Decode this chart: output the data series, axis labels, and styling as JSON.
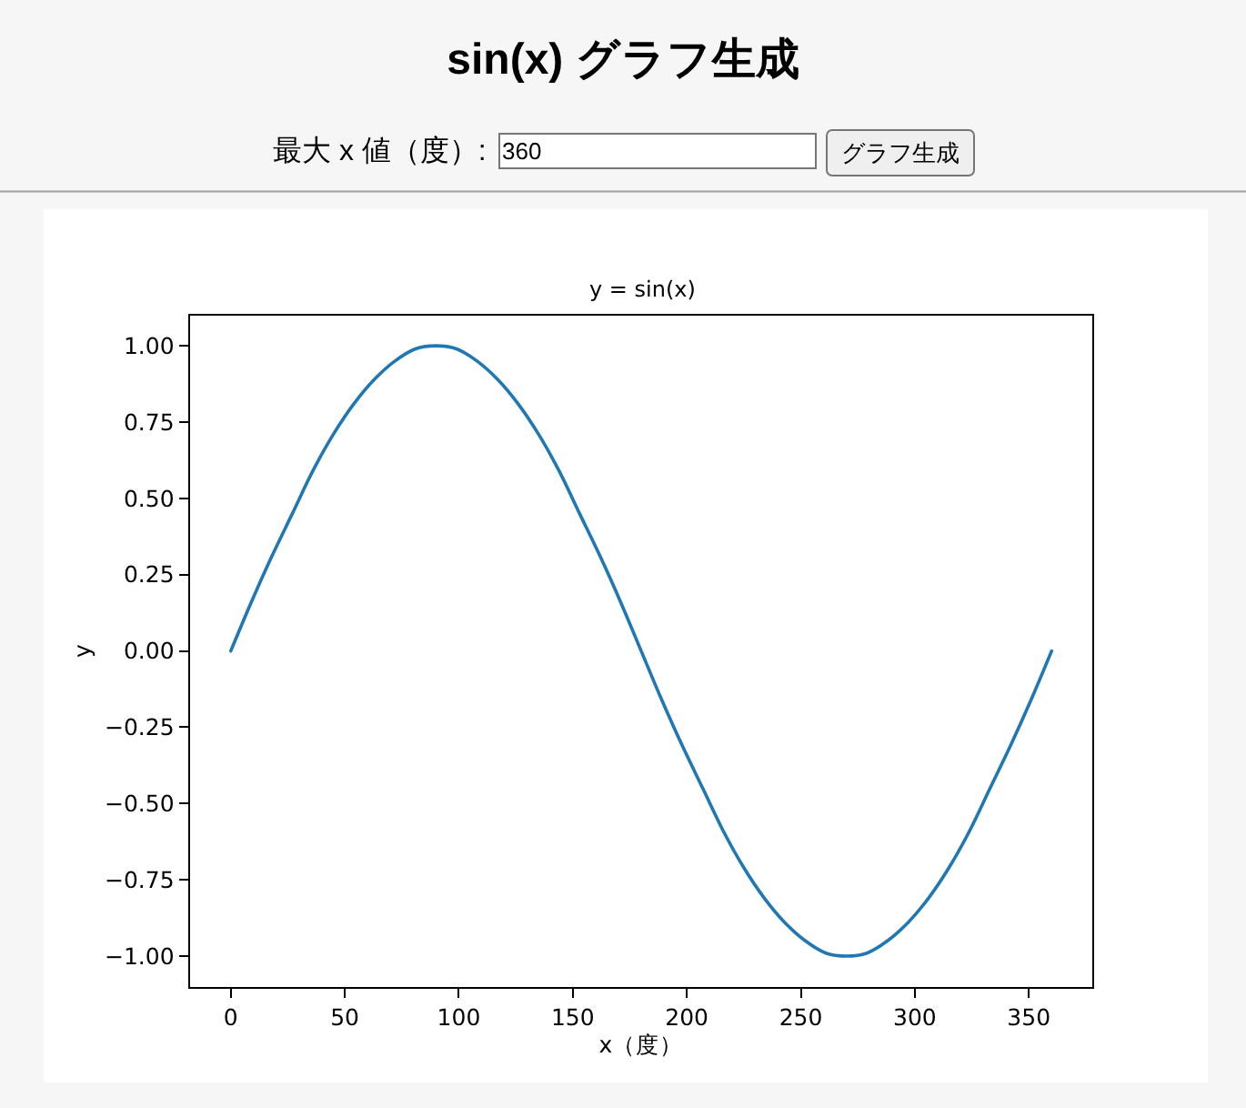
{
  "chart_data": {
    "type": "line",
    "title": "sin(x) グラフ生成",
    "subtitle": "y = sin(x)",
    "xlabel": "x（度）",
    "ylabel": "y",
    "annotations": [
      "最大 x 値（度）:",
      "360",
      "グラフ生成"
    ],
    "x": [
      0,
      9,
      18,
      27,
      36,
      45,
      54,
      63,
      72,
      81,
      90,
      99,
      108,
      117,
      126,
      135,
      144,
      153,
      162,
      171,
      180,
      189,
      198,
      207,
      216,
      225,
      234,
      243,
      252,
      261,
      270,
      279,
      288,
      297,
      306,
      315,
      324,
      333,
      342,
      351,
      360
    ],
    "values": [
      0.0,
      0.16,
      0.31,
      0.45,
      0.59,
      0.71,
      0.81,
      0.89,
      0.95,
      0.99,
      1.0,
      0.99,
      0.95,
      0.89,
      0.81,
      0.71,
      0.59,
      0.45,
      0.31,
      0.16,
      0.0,
      -0.16,
      -0.31,
      -0.45,
      -0.59,
      -0.71,
      -0.81,
      -0.89,
      -0.95,
      -0.99,
      -1.0,
      -0.99,
      -0.95,
      -0.89,
      -0.81,
      -0.71,
      -0.59,
      -0.45,
      -0.31,
      -0.16,
      0.0
    ],
    "color": "#1f77b4",
    "line_style": "solid",
    "xlim": [
      -18,
      378
    ],
    "xticks": [
      0,
      50,
      100,
      150,
      200,
      250,
      300,
      350
    ],
    "ylim": [
      -1.1,
      1.1
    ],
    "yticks": [
      {
        "value": -1,
        "label": "−1.00"
      },
      {
        "value": -0.75,
        "label": "−0.75"
      },
      {
        "value": -0.5,
        "label": "−0.50"
      },
      {
        "value": -0.25,
        "label": "−0.25"
      },
      {
        "value": 0,
        "label": "0.00"
      },
      {
        "value": 0.25,
        "label": "0.25"
      },
      {
        "value": 0.5,
        "label": "0.50"
      },
      {
        "value": 0.75,
        "label": "0.75"
      },
      {
        "value": 1,
        "label": "1.00"
      }
    ]
  }
}
